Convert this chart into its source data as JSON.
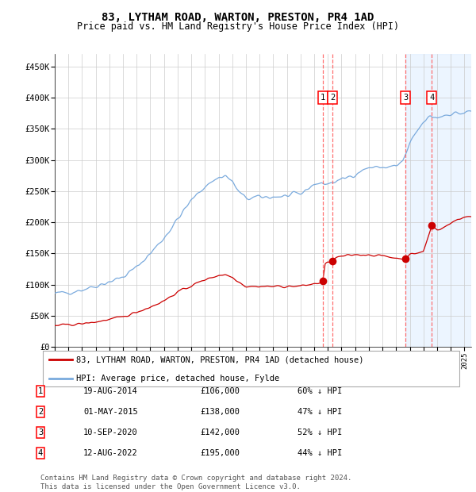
{
  "title": "83, LYTHAM ROAD, WARTON, PRESTON, PR4 1AD",
  "subtitle": "Price paid vs. HM Land Registry's House Price Index (HPI)",
  "ylabel_ticks": [
    "£0",
    "£50K",
    "£100K",
    "£150K",
    "£200K",
    "£250K",
    "£300K",
    "£350K",
    "£400K",
    "£450K"
  ],
  "ytick_values": [
    0,
    50000,
    100000,
    150000,
    200000,
    250000,
    300000,
    350000,
    400000,
    450000
  ],
  "ylim": [
    0,
    470000
  ],
  "xlim_start": 1995.0,
  "xlim_end": 2025.5,
  "hpi_color": "#7aaadd",
  "price_color": "#cc0000",
  "sale_marker_color": "#cc0000",
  "vline_color": "#ff5555",
  "shade_color": "#ddeeff",
  "legend_label_red": "83, LYTHAM ROAD, WARTON, PRESTON, PR4 1AD (detached house)",
  "legend_label_blue": "HPI: Average price, detached house, Fylde",
  "footer_text": "Contains HM Land Registry data © Crown copyright and database right 2024.\nThis data is licensed under the Open Government Licence v3.0.",
  "sales": [
    {
      "num": 1,
      "date_x": 2014.63,
      "price": 106000,
      "label": "1",
      "date_str": "19-AUG-2014",
      "amount": "£106,000",
      "pct": "60% ↓ HPI"
    },
    {
      "num": 2,
      "date_x": 2015.33,
      "price": 138000,
      "label": "2",
      "date_str": "01-MAY-2015",
      "amount": "£138,000",
      "pct": "47% ↓ HPI"
    },
    {
      "num": 3,
      "date_x": 2020.69,
      "price": 142000,
      "label": "3",
      "date_str": "10-SEP-2020",
      "amount": "£142,000",
      "pct": "52% ↓ HPI"
    },
    {
      "num": 4,
      "date_x": 2022.62,
      "price": 195000,
      "label": "4",
      "date_str": "12-AUG-2022",
      "amount": "£195,000",
      "pct": "44% ↓ HPI"
    }
  ],
  "shade_start": 2020.69,
  "shade_end": 2025.5,
  "background_color": "#ffffff",
  "grid_color": "#cccccc",
  "title_fontsize": 10,
  "subtitle_fontsize": 8.5
}
